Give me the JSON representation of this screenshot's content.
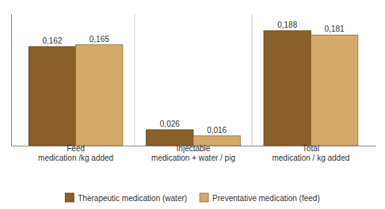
{
  "chart_data": {
    "type": "bar",
    "categories": [
      "Feed\nmedication /kg added",
      "Injectable\nmedication + water / pig",
      "Total\nmedication / kg added"
    ],
    "series": [
      {
        "name": "Therapeutic medication (water)",
        "color": "#8B5E2A",
        "values": [
          0.162,
          0.026,
          0.188
        ],
        "value_labels": [
          "0,162",
          "0,026",
          "0,188"
        ]
      },
      {
        "name": "Preventative medication (feed)",
        "color": "#D4A96A",
        "values": [
          0.165,
          0.016,
          0.181
        ],
        "value_labels": [
          "0,165",
          "0,016",
          "0,181"
        ]
      }
    ],
    "ylim": [
      0,
      0.215
    ],
    "data_labels": true,
    "tick_labels": "x",
    "grid": false,
    "legend": "bottom"
  }
}
